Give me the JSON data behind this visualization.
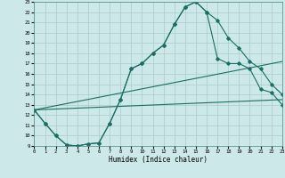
{
  "xlabel": "Humidex (Indice chaleur)",
  "bg_color": "#cce8e8",
  "line_color": "#1a6e64",
  "grid_color": "#aacccc",
  "ylim": [
    9,
    23
  ],
  "xlim": [
    0,
    23
  ],
  "yticks": [
    9,
    10,
    11,
    12,
    13,
    14,
    15,
    16,
    17,
    18,
    19,
    20,
    21,
    22,
    23
  ],
  "xticks": [
    0,
    1,
    2,
    3,
    4,
    5,
    6,
    7,
    8,
    9,
    10,
    11,
    12,
    13,
    14,
    15,
    16,
    17,
    18,
    19,
    20,
    21,
    22,
    23
  ],
  "series1_x": [
    0,
    1,
    2,
    3,
    4,
    5,
    6,
    7,
    8,
    9,
    10,
    11,
    12,
    13,
    14,
    15,
    16,
    17,
    18,
    19,
    20,
    21,
    22,
    23
  ],
  "series1_y": [
    12.5,
    11.2,
    10.0,
    9.1,
    9.0,
    9.2,
    9.3,
    11.2,
    13.5,
    16.5,
    17.0,
    18.0,
    18.8,
    20.8,
    22.5,
    23.0,
    22.0,
    21.2,
    19.5,
    18.5,
    17.2,
    16.5,
    15.0,
    14.0
  ],
  "series2_x": [
    0,
    1,
    2,
    3,
    4,
    5,
    6,
    7,
    8,
    9,
    10,
    11,
    12,
    13,
    14,
    15,
    16,
    17,
    18,
    19,
    20,
    21,
    22,
    23
  ],
  "series2_y": [
    12.5,
    11.2,
    10.0,
    9.1,
    9.0,
    9.2,
    9.3,
    11.2,
    13.5,
    16.5,
    17.0,
    18.0,
    18.8,
    20.8,
    22.5,
    23.0,
    22.0,
    17.5,
    17.0,
    17.0,
    16.5,
    14.5,
    14.2,
    13.0
  ],
  "series3_x": [
    0,
    23
  ],
  "series3_y": [
    12.5,
    17.2
  ],
  "series4_x": [
    0,
    23
  ],
  "series4_y": [
    12.5,
    13.5
  ]
}
